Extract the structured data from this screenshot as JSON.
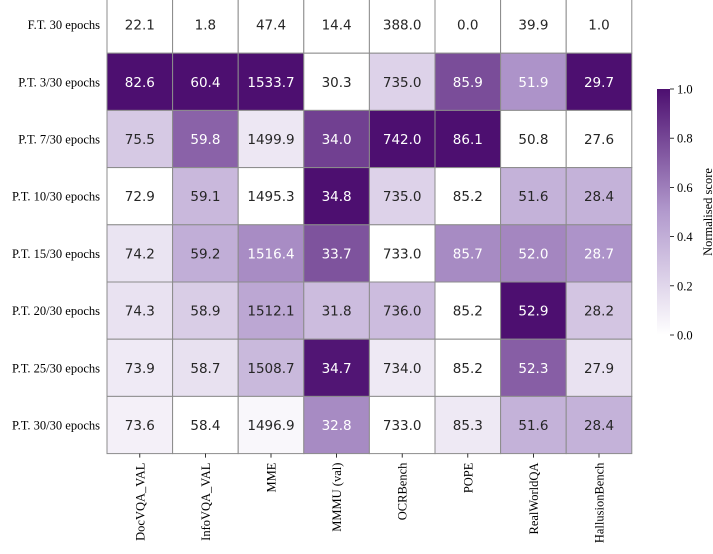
{
  "chart_data": {
    "type": "heatmap",
    "title": "",
    "xlabel": "",
    "ylabel": "",
    "rows": [
      "F.T. 30 epochs",
      "P.T. 3/30 epochs",
      "P.T. 7/30 epochs",
      "P.T. 10/30 epochs",
      "P.T. 15/30 epochs",
      "P.T. 20/30 epochs",
      "P.T. 25/30 epochs",
      "P.T. 30/30 epochs"
    ],
    "columns": [
      "DocVQA_VAL",
      "InfoVQA_VAL",
      "MME",
      "MMMU (val)",
      "OCRBench",
      "POPE",
      "RealWorldQA",
      "HallusionBench"
    ],
    "values": [
      [
        22.1,
        1.8,
        47.4,
        14.4,
        388.0,
        0.0,
        39.9,
        1.0
      ],
      [
        82.6,
        60.4,
        1533.7,
        30.3,
        735.0,
        85.9,
        51.9,
        29.7
      ],
      [
        75.5,
        59.8,
        1499.9,
        34.0,
        742.0,
        86.1,
        50.8,
        27.6
      ],
      [
        72.9,
        59.1,
        1495.3,
        34.8,
        735.0,
        85.2,
        51.6,
        28.4
      ],
      [
        74.2,
        59.2,
        1516.4,
        33.7,
        733.0,
        85.7,
        52.0,
        28.7
      ],
      [
        74.3,
        58.9,
        1512.1,
        31.8,
        736.0,
        85.2,
        52.9,
        28.2
      ],
      [
        73.9,
        58.7,
        1508.7,
        34.7,
        734.0,
        85.2,
        52.3,
        27.9
      ],
      [
        73.6,
        58.4,
        1496.9,
        32.8,
        733.0,
        85.3,
        51.6,
        28.4
      ]
    ],
    "value_labels": [
      [
        "22.1",
        "1.8",
        "47.4",
        "14.4",
        "388.0",
        "0.0",
        "39.9",
        "1.0"
      ],
      [
        "82.6",
        "60.4",
        "1533.7",
        "30.3",
        "735.0",
        "85.9",
        "51.9",
        "29.7"
      ],
      [
        "75.5",
        "59.8",
        "1499.9",
        "34.0",
        "742.0",
        "86.1",
        "50.8",
        "27.6"
      ],
      [
        "72.9",
        "59.1",
        "1495.3",
        "34.8",
        "735.0",
        "85.2",
        "51.6",
        "28.4"
      ],
      [
        "74.2",
        "59.2",
        "1516.4",
        "33.7",
        "733.0",
        "85.7",
        "52.0",
        "28.7"
      ],
      [
        "74.3",
        "58.9",
        "1512.1",
        "31.8",
        "736.0",
        "85.2",
        "52.9",
        "28.2"
      ],
      [
        "73.9",
        "58.7",
        "1508.7",
        "34.7",
        "734.0",
        "85.2",
        "52.3",
        "27.9"
      ],
      [
        "73.6",
        "58.4",
        "1496.9",
        "32.8",
        "733.0",
        "85.3",
        "51.6",
        "28.4"
      ]
    ],
    "colorbar": {
      "label": "Normalised score",
      "range": [
        0,
        1
      ],
      "ticks": [
        0.0,
        0.2,
        0.4,
        0.6,
        0.8,
        1.0
      ],
      "tick_labels": [
        "0.0",
        "0.2",
        "0.4",
        "0.6",
        "0.8",
        "1.0"
      ],
      "color_low": "#ffffff",
      "color_high": "#4d0f70"
    },
    "grid": true,
    "legend": "colorbar-right"
  }
}
